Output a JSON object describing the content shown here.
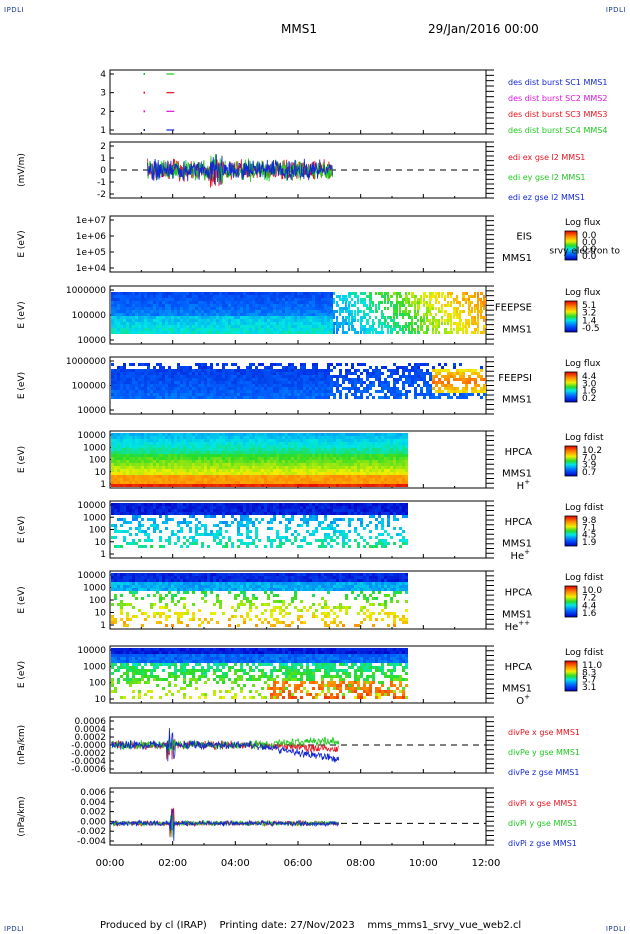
{
  "header": {
    "corner_left_top": "IPDLI",
    "corner_right_top": "IPDLI",
    "corner_left_bottom": "IPDLI",
    "corner_right_bottom": "IPDLI",
    "spacecraft": "MMS1",
    "date_time": "29/Jan/2016 00:00"
  },
  "footer": {
    "produced_by": "Produced by cl (IRAP)",
    "printing_date": "Printing date: 27/Nov/2023",
    "filename": "mms_mms1_srvy_vue_web2.cl"
  },
  "colors": {
    "red": "#e8141e",
    "green": "#1ec81e",
    "blue": "#1428d2",
    "magenta": "#dc14dc"
  },
  "chart_data": [
    {
      "id": "p1",
      "type": "scatter",
      "yticks": [
        "4",
        "3",
        "2",
        "1"
      ],
      "legend": [
        {
          "text": "des dist burst SC1 MMS1",
          "color": "#1428d2"
        },
        {
          "text": "des dist burst SC2 MMS2",
          "color": "#dc14dc"
        },
        {
          "text": "des dist burst SC3 MMS3",
          "color": "#e8141e"
        },
        {
          "text": "des dist burst SC4 MMS4",
          "color": "#1ec81e"
        }
      ]
    },
    {
      "id": "p2",
      "type": "line",
      "ylabel": "(mV/m)",
      "yticks": [
        "2",
        "1",
        "0",
        "-1",
        "-2"
      ],
      "legend": [
        {
          "text": "edi ex gse l2 MMS1",
          "color": "#e8141e"
        },
        {
          "text": "edi ey gse l2 MMS1",
          "color": "#1ec81e"
        },
        {
          "text": "edi ez gse l2 MMS1",
          "color": "#1428d2"
        }
      ]
    },
    {
      "id": "p3",
      "type": "heatmap",
      "ylabel": "E (eV)",
      "yticks": [
        "1e+07",
        "1e+06",
        "1e+05",
        "1e+04"
      ],
      "instrument": "EIS",
      "sc": "MMS1",
      "overlay": "srvy electron to",
      "cb_title": "Log flux",
      "cb_ticks": [
        "0.0",
        "0.0",
        "0.0",
        "0.0"
      ]
    },
    {
      "id": "p4",
      "type": "heatmap",
      "ylabel": "E (eV)",
      "yticks": [
        "1000000",
        "100000",
        "10000"
      ],
      "instrument": "FEEPSE",
      "sc": "MMS1",
      "cb_title": "Log flux",
      "cb_ticks": [
        "5.1",
        "3.2",
        "1.4",
        "-0.5"
      ]
    },
    {
      "id": "p5",
      "type": "heatmap",
      "ylabel": "E (eV)",
      "yticks": [
        "1000000",
        "100000",
        "10000"
      ],
      "instrument": "FEEPSI",
      "sc": "MMS1",
      "cb_title": "Log flux",
      "cb_ticks": [
        "4.4",
        "3.0",
        "1.6",
        "0.2"
      ]
    },
    {
      "id": "p6",
      "type": "heatmap",
      "ylabel": "E (eV)",
      "yticks": [
        "10000",
        "1000",
        "100",
        "10",
        "1"
      ],
      "instrument": "HPCA",
      "sc": "MMS1",
      "species": "H",
      "species_sup": "+",
      "cb_title": "Log fdist",
      "cb_ticks": [
        "10.2",
        "7.0",
        "3.9",
        "0.7"
      ]
    },
    {
      "id": "p7",
      "type": "heatmap",
      "ylabel": "E (eV)",
      "yticks": [
        "10000",
        "1000",
        "100",
        "10",
        "1"
      ],
      "instrument": "HPCA",
      "sc": "MMS1",
      "species": "He",
      "species_sup": "+",
      "cb_title": "Log fdist",
      "cb_ticks": [
        "9.8",
        "7.1",
        "4.5",
        "1.9"
      ]
    },
    {
      "id": "p8",
      "type": "heatmap",
      "ylabel": "E (eV)",
      "yticks": [
        "10000",
        "1000",
        "100",
        "10",
        "1"
      ],
      "instrument": "HPCA",
      "sc": "MMS1",
      "species": "He",
      "species_sup": "++",
      "cb_title": "Log fdist",
      "cb_ticks": [
        "10.0",
        "7.2",
        "4.4",
        "1.6"
      ]
    },
    {
      "id": "p9",
      "type": "heatmap",
      "ylabel": "E (eV)",
      "yticks": [
        "10000",
        "1000",
        "100",
        "10"
      ],
      "instrument": "HPCA",
      "sc": "MMS1",
      "species": "O",
      "species_sup": "+",
      "cb_title": "Log fdist",
      "cb_ticks": [
        "11.0",
        "8.3",
        "5.7",
        "3.1"
      ]
    },
    {
      "id": "p10",
      "type": "line",
      "ylabel": "(nPa/km)",
      "yticks": [
        "0.0006",
        "0.0004",
        "0.0002",
        "-0.0000",
        "-0.0002",
        "-0.0004",
        "-0.0006"
      ],
      "legend": [
        {
          "text": "divPe x gse MMS1",
          "color": "#e8141e"
        },
        {
          "text": "divPe y gse MMS1",
          "color": "#1ec81e"
        },
        {
          "text": "divPe z gse MMS1",
          "color": "#1428d2"
        }
      ]
    },
    {
      "id": "p11",
      "type": "line",
      "ylabel": "(nPa/km)",
      "yticks": [
        "0.006",
        "0.004",
        "0.002",
        "0.000",
        "-0.002",
        "-0.004"
      ],
      "legend": [
        {
          "text": "divPi x gse MMS1",
          "color": "#e8141e"
        },
        {
          "text": "divPi y gse MMS1",
          "color": "#1ec81e"
        },
        {
          "text": "divPi z gse MMS1",
          "color": "#1428d2"
        }
      ]
    }
  ],
  "xaxis": {
    "ticks": [
      "00:00",
      "02:00",
      "04:00",
      "06:00",
      "08:00",
      "10:00",
      "12:00"
    ],
    "range_hours": [
      0,
      12
    ]
  }
}
